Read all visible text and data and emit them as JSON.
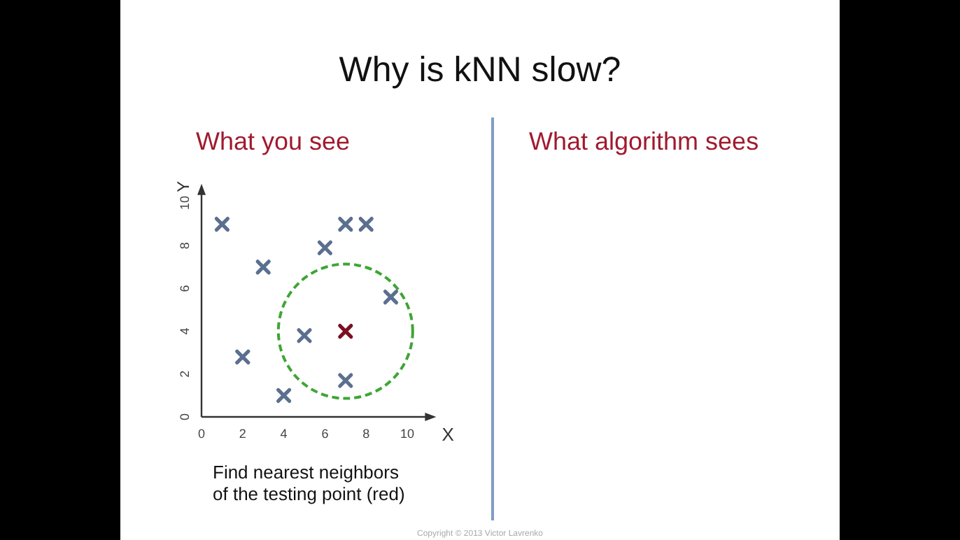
{
  "chart_data": {
    "type": "scatter",
    "title": "Why is kNN slow?",
    "xlabel": "X",
    "ylabel": "Y",
    "annotations": [
      "What you see",
      "What algorithm sees",
      "Find nearest neighbors\nof the testing point (red)",
      "Copyright © 2013 Victor Lavrenko"
    ],
    "xlim": [
      0,
      11
    ],
    "ylim": [
      0,
      10.5
    ],
    "xticks": [
      0,
      2,
      4,
      6,
      8,
      10
    ],
    "yticks": [
      0,
      2,
      4,
      6,
      8,
      10
    ],
    "marker": "cross",
    "grid": false,
    "series": [
      {
        "color": "#5b6f8f",
        "x": [
          1,
          3,
          2,
          4,
          5,
          6,
          7,
          8,
          9.2,
          7
        ],
        "values": [
          9,
          7,
          2.8,
          1,
          3.8,
          7.9,
          9,
          9,
          5.6,
          1.7
        ]
      },
      {
        "color": "#7a1020",
        "x": [
          7
        ],
        "values": [
          4
        ]
      }
    ]
  }
}
